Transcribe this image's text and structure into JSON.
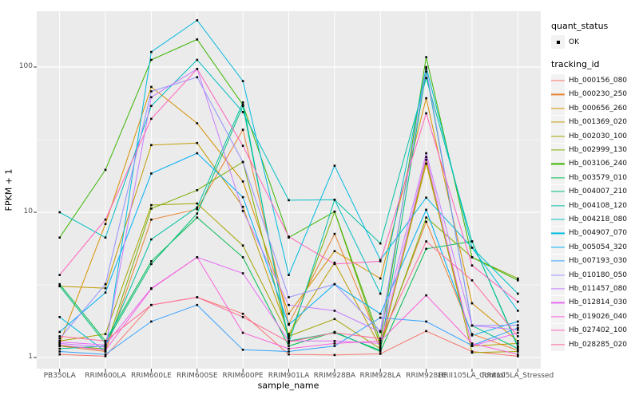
{
  "figure": {
    "background": "#FFFFFF",
    "panel_bg": "#EBEBEB",
    "grid_color": "#FFFFFF",
    "tick_color": "#333333",
    "tick_label_color": "#4D4D4D",
    "point_color": "#000000"
  },
  "chart_data": {
    "type": "line",
    "title": "",
    "xlabel": "sample_name",
    "ylabel": "FPKM + 1",
    "y_scale": "log10",
    "ylim": [
      0.84,
      243
    ],
    "grid": true,
    "legend_position": "right",
    "x_categories": [
      "PB350LA",
      "RRIM600LA",
      "RRIM600LE",
      "RRIM600SE",
      "RRIM600PE",
      "RRIM901LA",
      "RRIM928BA",
      "RRIM928LA",
      "RRIM928LE",
      "RRII105LA_Control",
      "RRII105LA_Stressed"
    ],
    "y_ticks": [
      1,
      10,
      100
    ],
    "y_tick_labels": [
      "1",
      "10",
      "100"
    ],
    "y_minor_ticks": [
      3.162,
      31.62
    ],
    "legend": {
      "quant_status": {
        "title": "quant_status",
        "items": [
          {
            "label": "OK",
            "symbol": "point"
          }
        ]
      },
      "tracking_id": {
        "title": "tracking_id"
      }
    },
    "series": [
      {
        "name": "Hb_000156_080",
        "color": "#F8766D",
        "values": [
          1.05,
          1.02,
          2.3,
          2.6,
          2.0,
          1.05,
          1.04,
          1.06,
          1.52,
          1.1,
          1.02
        ]
      },
      {
        "name": "Hb_000230_250",
        "color": "#EA8331",
        "values": [
          1.2,
          1.1,
          8.9,
          10.5,
          37,
          1.7,
          7.1,
          1.25,
          8.6,
          1.45,
          1.12
        ]
      },
      {
        "name": "Hb_000656_260",
        "color": "#D89000",
        "values": [
          1.25,
          8.3,
          73,
          41,
          16.3,
          2.0,
          5.4,
          3.5,
          61,
          2.36,
          1.3
        ]
      },
      {
        "name": "Hb_001369_020",
        "color": "#C09B00",
        "values": [
          3.1,
          3.0,
          29,
          30,
          10.9,
          1.45,
          4.5,
          1.18,
          21.6,
          1.2,
          1.25
        ]
      },
      {
        "name": "Hb_002030_100",
        "color": "#A3A500",
        "values": [
          1.3,
          1.45,
          11.2,
          11.5,
          5.9,
          1.4,
          1.84,
          1.15,
          23,
          1.08,
          1.1
        ]
      },
      {
        "name": "Hb_002999_130",
        "color": "#7CAE00",
        "values": [
          1.2,
          1.15,
          10.6,
          14.2,
          22.2,
          1.35,
          10.1,
          1.2,
          9.2,
          4.9,
          3.5
        ]
      },
      {
        "name": "Hb_003106_240",
        "color": "#39B600",
        "values": [
          6.7,
          19.6,
          112,
          155,
          55,
          6.7,
          10.1,
          1.3,
          117,
          4.9,
          3.4
        ]
      },
      {
        "name": "Hb_003579_010",
        "color": "#00BB4E",
        "values": [
          3.2,
          1.3,
          4.6,
          9.2,
          4.9,
          1.2,
          1.5,
          1.1,
          5.6,
          6.3,
          1.2
        ]
      },
      {
        "name": "Hb_004007_210",
        "color": "#00BF7D",
        "values": [
          3.1,
          1.25,
          4.4,
          9.8,
          54,
          1.3,
          1.48,
          1.12,
          93,
          1.66,
          1.15
        ]
      },
      {
        "name": "Hb_004108_120",
        "color": "#00C1A3",
        "values": [
          1.15,
          1.2,
          6.5,
          10.8,
          57,
          1.25,
          12.2,
          6.1,
          84,
          6.3,
          1.18
        ]
      },
      {
        "name": "Hb_004218_080",
        "color": "#00BFC4",
        "values": [
          10,
          6.7,
          54,
          112,
          49,
          12.1,
          12.2,
          2.75,
          100,
          5.7,
          2.75
        ]
      },
      {
        "name": "Hb_004907_070",
        "color": "#00BAE0",
        "values": [
          1.9,
          1.1,
          127,
          210,
          80,
          3.7,
          20.9,
          4.7,
          12.6,
          5.7,
          2.1
        ]
      },
      {
        "name": "Hb_005054_320",
        "color": "#00B0F6",
        "values": [
          1.5,
          2.8,
          18.5,
          25.5,
          12.7,
          1.68,
          3.2,
          2.0,
          10.4,
          1.42,
          1.77
        ]
      },
      {
        "name": "Hb_007193_030",
        "color": "#35A2FF",
        "values": [
          1.1,
          1.05,
          1.77,
          2.3,
          1.13,
          1.1,
          1.2,
          1.88,
          1.77,
          1.21,
          1.6
        ]
      },
      {
        "name": "Hb_010180_050",
        "color": "#9590FF",
        "values": [
          1.35,
          3.2,
          68,
          85,
          22.2,
          2.6,
          3.2,
          1.52,
          97,
          1.66,
          1.67
        ]
      },
      {
        "name": "Hb_011457_080",
        "color": "#C77CFF",
        "values": [
          1.25,
          1.18,
          62,
          97,
          10.2,
          2.3,
          2.1,
          1.5,
          25.5,
          1.66,
          1.55
        ]
      },
      {
        "name": "Hb_012814_030",
        "color": "#E76BF3",
        "values": [
          1.28,
          1.22,
          3.0,
          4.9,
          3.8,
          1.3,
          1.3,
          1.25,
          24,
          1.2,
          1.48
        ]
      },
      {
        "name": "Hb_019026_040",
        "color": "#FA62DB",
        "values": [
          1.22,
          1.12,
          2.97,
          4.9,
          1.48,
          1.15,
          1.25,
          1.3,
          2.68,
          1.25,
          1.05
        ]
      },
      {
        "name": "Hb_027402_100",
        "color": "#FF62BC",
        "values": [
          3.7,
          8.9,
          44,
          97,
          28.7,
          6.8,
          4.4,
          4.6,
          48,
          4.3,
          2.42
        ]
      },
      {
        "name": "Hb_028285_020",
        "color": "#FF6A98",
        "values": [
          1.4,
          1.3,
          2.3,
          2.6,
          1.9,
          1.28,
          1.48,
          1.35,
          6.3,
          3.4,
          1.4
        ]
      }
    ]
  }
}
